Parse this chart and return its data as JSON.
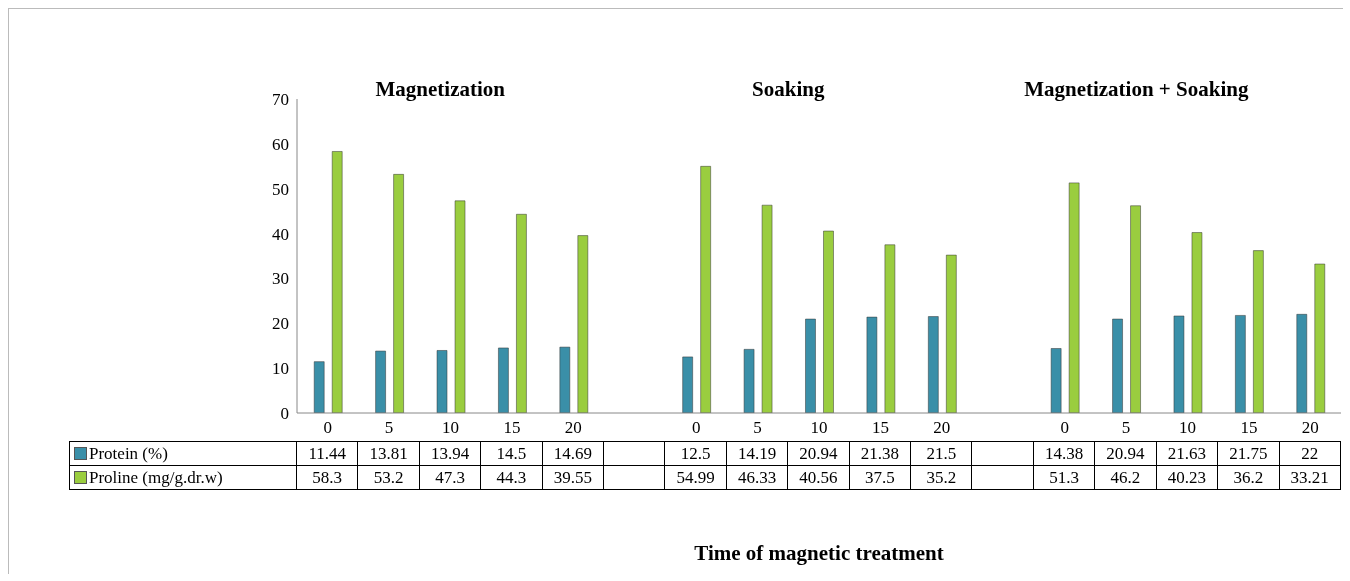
{
  "chart_data": {
    "type": "bar",
    "xlabel": "Time of magnetic treatment",
    "annotations": [
      "Magnetization",
      "Soaking",
      "Magnetization + Soaking"
    ],
    "categories": [
      "0",
      "5",
      "10",
      "15",
      "20",
      null,
      "0",
      "5",
      "10",
      "15",
      "20",
      null,
      "0",
      "5",
      "10",
      "15",
      "20"
    ],
    "series": [
      {
        "name": "Protein (%)",
        "color": "#3a8fa8",
        "values": [
          11.44,
          13.81,
          13.94,
          14.5,
          14.69,
          null,
          12.5,
          14.19,
          20.94,
          21.38,
          21.5,
          null,
          14.38,
          20.94,
          21.63,
          21.75,
          22
        ]
      },
      {
        "name": "Proline (mg/g.dr.w)",
        "color": "#9acd3f",
        "values": [
          58.3,
          53.2,
          47.3,
          44.3,
          39.55,
          null,
          54.99,
          46.33,
          40.56,
          37.5,
          35.2,
          null,
          51.3,
          46.2,
          40.23,
          36.2,
          33.21
        ]
      }
    ],
    "ylim": [
      0,
      70
    ],
    "yticks": [
      0,
      10,
      20,
      30,
      40,
      50,
      60,
      70
    ],
    "data_labels": true,
    "legend": "bottom left"
  }
}
